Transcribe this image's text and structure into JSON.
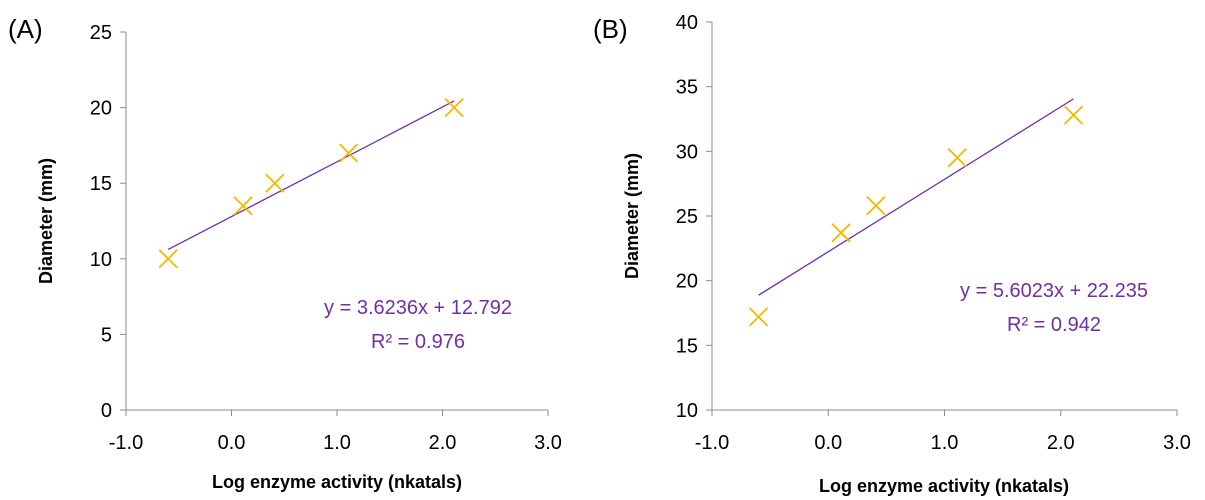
{
  "colors": {
    "marker": "#f5b800",
    "trendline": "#7030a0",
    "axis": "#8c8c8c",
    "text": "#000000"
  },
  "chart_data": [
    {
      "type": "scatter",
      "panel_label": "(A)",
      "xlabel": "Log enzyme activity (nkatals)",
      "ylabel": "Diameter (mm)",
      "xlim": [
        -1.0,
        3.0
      ],
      "ylim": [
        0,
        25
      ],
      "x_ticks": [
        "-1.0",
        "0.0",
        "1.0",
        "2.0",
        "3.0"
      ],
      "y_ticks": [
        "0",
        "5",
        "10",
        "15",
        "20",
        "25"
      ],
      "grid": false,
      "marker": "x",
      "points": [
        {
          "x": -0.6,
          "y": 10.0
        },
        {
          "x": 0.11,
          "y": 13.5
        },
        {
          "x": 0.41,
          "y": 15.0
        },
        {
          "x": 1.11,
          "y": 17.0
        },
        {
          "x": 2.11,
          "y": 20.0
        }
      ],
      "trendline": {
        "slope": 3.6236,
        "intercept": 12.792,
        "x_range": [
          -0.6,
          2.11
        ]
      },
      "equation": "y = 3.6236x + 12.792",
      "r_squared": "R² = 0.976"
    },
    {
      "type": "scatter",
      "panel_label": "(B)",
      "xlabel": "Log enzyme activity (nkatals)",
      "ylabel": "Diameter (mm)",
      "xlim": [
        -1.0,
        3.0
      ],
      "ylim": [
        10,
        40
      ],
      "x_ticks": [
        "-1.0",
        "0.0",
        "1.0",
        "2.0",
        "3.0"
      ],
      "y_ticks": [
        "10",
        "15",
        "20",
        "25",
        "30",
        "35",
        "40"
      ],
      "grid": false,
      "marker": "x",
      "points": [
        {
          "x": -0.6,
          "y": 17.2
        },
        {
          "x": 0.11,
          "y": 23.7
        },
        {
          "x": 0.41,
          "y": 25.8
        },
        {
          "x": 1.11,
          "y": 29.5
        },
        {
          "x": 2.11,
          "y": 32.8
        }
      ],
      "trendline": {
        "slope": 5.6023,
        "intercept": 22.235,
        "x_range": [
          -0.6,
          2.11
        ]
      },
      "equation": "y = 5.6023x + 22.235",
      "r_squared": "R² = 0.942"
    }
  ]
}
